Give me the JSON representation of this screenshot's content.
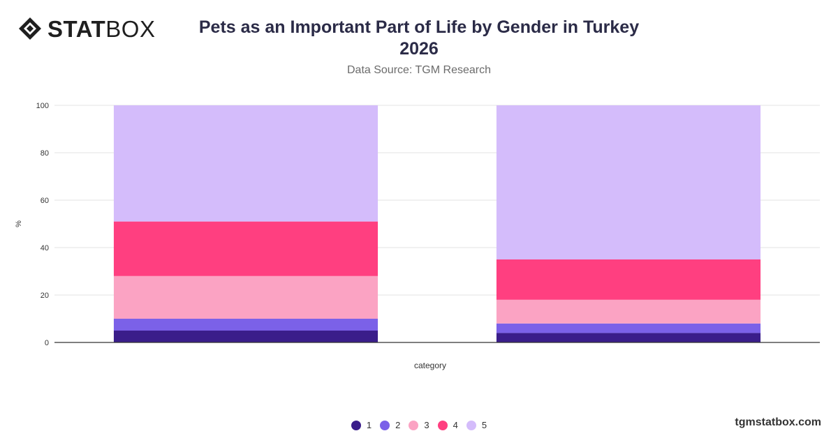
{
  "brand": {
    "logo_strong": "STAT",
    "logo_light": "BOX",
    "footer": "tgmstatbox.com"
  },
  "header": {
    "title_line1": "Pets as an Important Part of Life by Gender in Turkey",
    "title_line2": "2026",
    "subtitle": "Data Source: TGM Research"
  },
  "chart_data": {
    "type": "bar",
    "stacked": true,
    "title": "Pets as an Important Part of Life by Gender in Turkey 2026",
    "subtitle": "Data Source: TGM Research",
    "xlabel": "category",
    "ylabel": "%",
    "ylim": [
      0,
      100
    ],
    "yticks": [
      0,
      20,
      40,
      60,
      80,
      100
    ],
    "grid": true,
    "legend_position": "bottom",
    "categories": [
      "",
      ""
    ],
    "series": [
      {
        "name": "1",
        "color": "#3a1d8a",
        "values": [
          5,
          4
        ]
      },
      {
        "name": "2",
        "color": "#7b61e8",
        "values": [
          5,
          4
        ]
      },
      {
        "name": "3",
        "color": "#fba3c3",
        "values": [
          18,
          10
        ]
      },
      {
        "name": "4",
        "color": "#ff3f80",
        "values": [
          23,
          17
        ]
      },
      {
        "name": "5",
        "color": "#d4bcfb",
        "values": [
          49,
          65
        ]
      }
    ]
  }
}
